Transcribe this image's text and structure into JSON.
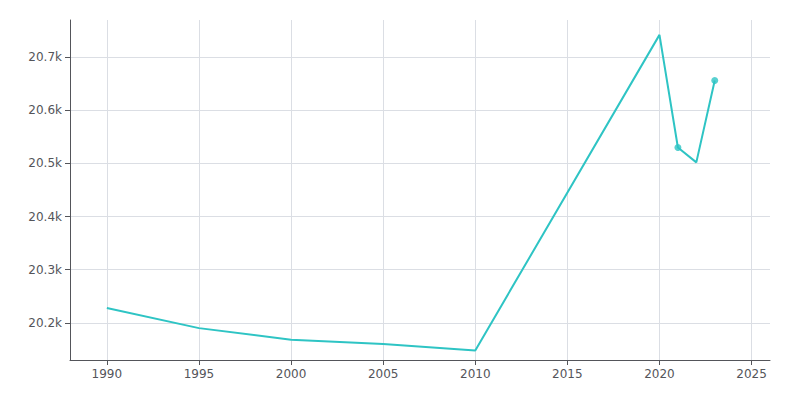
{
  "chart_data": {
    "type": "line",
    "x": [
      1990,
      1995,
      2000,
      2005,
      2010,
      2020,
      2021,
      2022,
      2023
    ],
    "series": [
      {
        "type": "line",
        "color": "#2EC4C4",
        "line_style": "solid",
        "values": [
          20228,
          20190,
          20168,
          20160,
          20148,
          20742,
          20530,
          20502,
          20656
        ]
      },
      {
        "type": "scatter",
        "color": "#2EC4C4",
        "marker": "circle",
        "x": [
          2021,
          2023
        ],
        "values": [
          20530,
          20656
        ]
      }
    ],
    "xlim": [
      1988,
      2026
    ],
    "xticks": [
      1990,
      1995,
      2000,
      2005,
      2010,
      2015,
      2020,
      2025
    ],
    "ylim": [
      20130,
      20770
    ],
    "yticks": [
      {
        "value": 20200,
        "label": "20.2k"
      },
      {
        "value": 20300,
        "label": "20.3k"
      },
      {
        "value": 20400,
        "label": "20.4k"
      },
      {
        "value": 20500,
        "label": "20.5k"
      },
      {
        "value": 20600,
        "label": "20.6k"
      },
      {
        "value": 20700,
        "label": "20.7k"
      }
    ],
    "grid": true
  }
}
